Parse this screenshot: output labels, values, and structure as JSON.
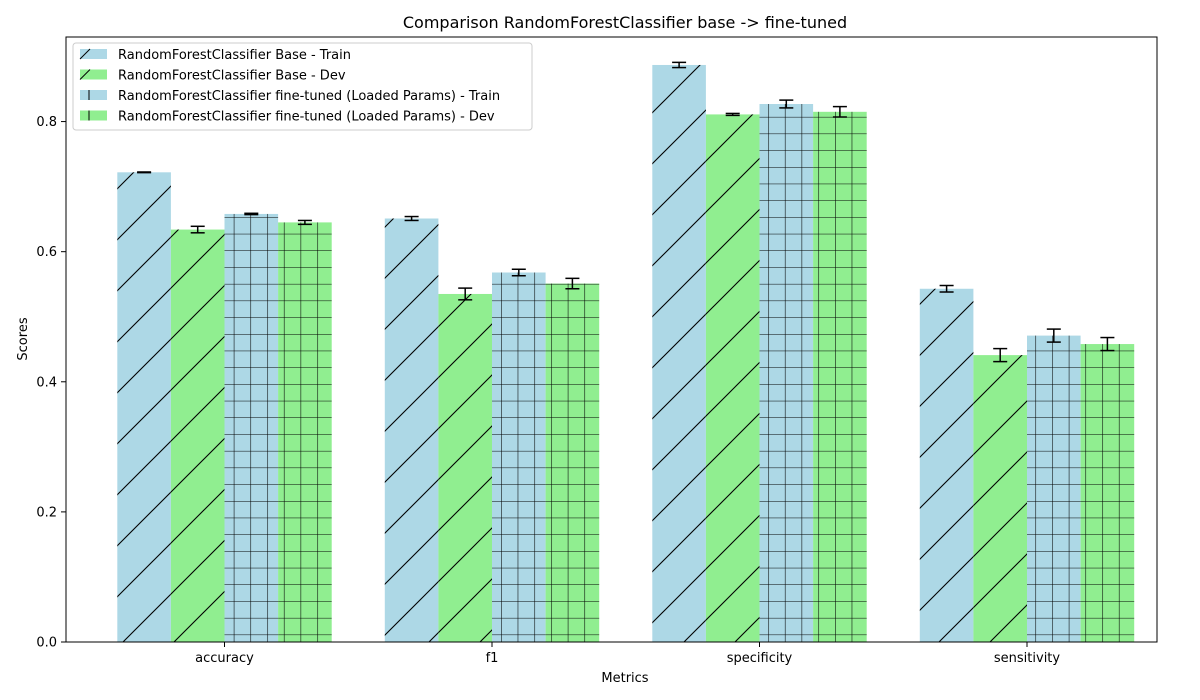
{
  "chart_data": {
    "type": "bar",
    "title": "Comparison RandomForestClassifier base -> fine-tuned",
    "xlabel": "Metrics",
    "ylabel": "Scores",
    "categories": [
      "accuracy",
      "f1",
      "specificity",
      "sensitivity"
    ],
    "ylim": [
      0,
      0.93
    ],
    "yticks": [
      "0.0",
      "0.2",
      "0.4",
      "0.6",
      "0.8"
    ],
    "grid": false,
    "legend_position": "top-left",
    "series": [
      {
        "name": "RandomForestClassifier Base - Train",
        "values": [
          0.722,
          0.651,
          0.887,
          0.543
        ],
        "errors": [
          0.0005,
          0.003,
          0.004,
          0.005
        ],
        "color": "#add8e6",
        "hatch": "diagonal"
      },
      {
        "name": "RandomForestClassifier Base - Dev",
        "values": [
          0.634,
          0.535,
          0.811,
          0.441
        ],
        "errors": [
          0.005,
          0.009,
          0.0015,
          0.01
        ],
        "color": "#90ee90",
        "hatch": "diagonal"
      },
      {
        "name": "RandomForestClassifier fine-tuned (Loaded Params) - Train",
        "values": [
          0.658,
          0.568,
          0.827,
          0.471
        ],
        "errors": [
          0.001,
          0.005,
          0.006,
          0.01
        ],
        "color": "#add8e6",
        "hatch": "grid"
      },
      {
        "name": "RandomForestClassifier fine-tuned (Loaded Params) - Dev",
        "values": [
          0.645,
          0.551,
          0.815,
          0.458
        ],
        "errors": [
          0.003,
          0.008,
          0.008,
          0.01
        ],
        "color": "#90ee90",
        "hatch": "grid"
      }
    ]
  }
}
